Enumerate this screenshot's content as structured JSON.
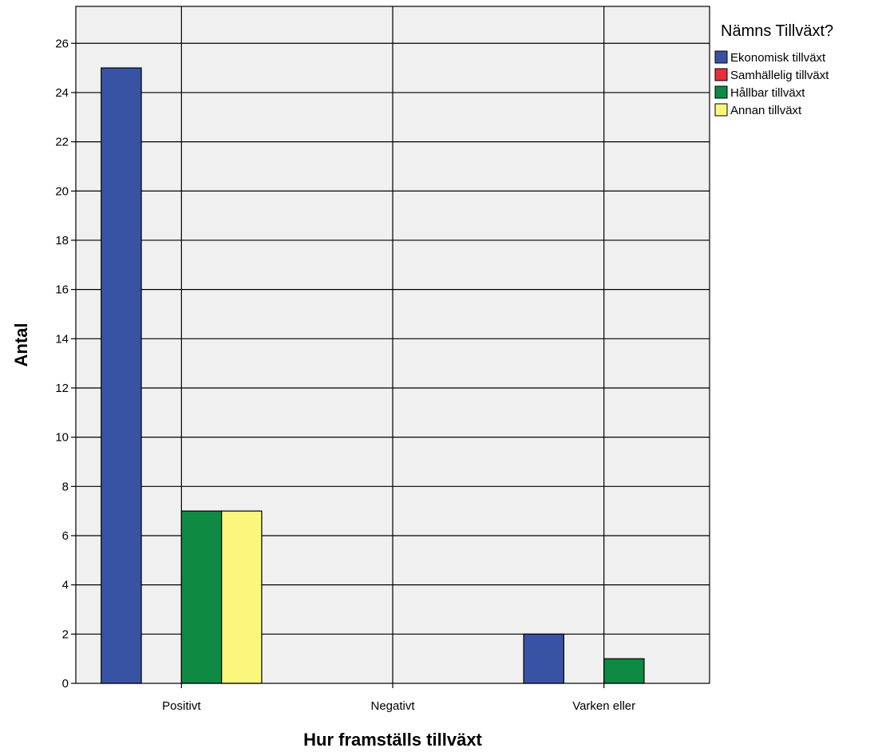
{
  "chart_data": {
    "type": "bar",
    "xlabel": "Hur framställs tillväxt",
    "ylabel": "Antal",
    "categories": [
      "Positivt",
      "Negativt",
      "Varken eller"
    ],
    "ylim": [
      0,
      27.5
    ],
    "yticks": [
      0,
      2,
      4,
      6,
      8,
      10,
      12,
      14,
      16,
      18,
      20,
      22,
      24,
      26
    ],
    "grid": true,
    "legend": {
      "title": "Nämns Tillväxt?",
      "placement": "right-top"
    },
    "series": [
      {
        "name": "Ekonomisk tillväxt",
        "color": "#3953a4",
        "values": [
          25,
          0,
          2
        ]
      },
      {
        "name": "Samhällelig tillväxt",
        "color": "#e8303a",
        "values": [
          0,
          0,
          0
        ]
      },
      {
        "name": "Hållbar tillväxt",
        "color": "#0e8a43",
        "values": [
          7,
          0,
          1
        ]
      },
      {
        "name": "Annan tillväxt",
        "color": "#fbf77c",
        "values": [
          7,
          0,
          0
        ]
      }
    ],
    "background_color": "#f0f0f0"
  }
}
